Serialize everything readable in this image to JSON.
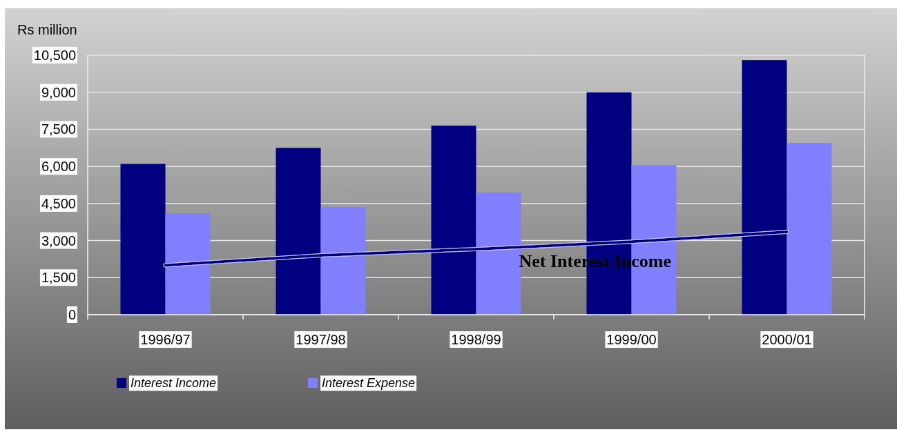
{
  "chart_data": {
    "type": "bar",
    "ylabel": "Rs million",
    "categories": [
      "1996/97",
      "1997/98",
      "1998/99",
      "1999/00",
      "2000/01"
    ],
    "ylim": [
      0,
      10500
    ],
    "yticks": [
      0,
      {
        "value": 1500,
        "label": "1,500"
      },
      {
        "value": 3000,
        "label": "3,000"
      },
      {
        "value": 4500,
        "label": "4,500"
      },
      {
        "value": 6000,
        "label": "6,000"
      },
      {
        "value": 7500,
        "label": "7,500"
      },
      {
        "value": 9000,
        "label": "9,000"
      },
      {
        "value": 10500,
        "label": "10,500"
      }
    ],
    "grid": "y",
    "legend": "bottom",
    "series": [
      {
        "name": "Interest Income",
        "color": "#000080",
        "values": [
          6100,
          6750,
          7650,
          9000,
          10300
        ]
      },
      {
        "name": "Interest Expense",
        "color": "#8080ff",
        "values": [
          4100,
          4350,
          4950,
          6050,
          6950
        ]
      },
      {
        "name": "Net Interest Income",
        "type": "line",
        "color": "#000080",
        "values": [
          2000,
          2400,
          2650,
          2950,
          3350
        ]
      }
    ]
  }
}
